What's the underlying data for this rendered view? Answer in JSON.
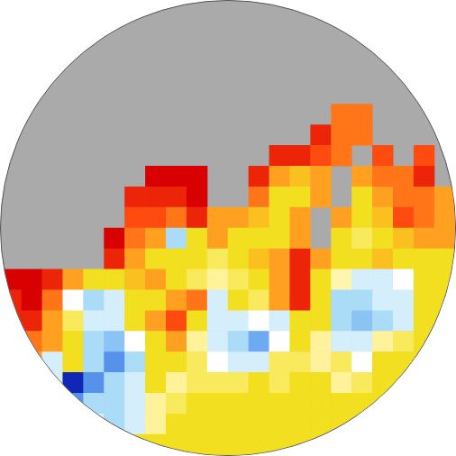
{
  "chart_data": {
    "type": "heatmap",
    "tick_labels": false,
    "color_range": [
      0,
      10
    ],
    "cells": [
      [
        null,
        null,
        null,
        null,
        null,
        null,
        null,
        null,
        null,
        null,
        null,
        null,
        null,
        null,
        null,
        null,
        null,
        null,
        null,
        null,
        null,
        null
      ],
      [
        null,
        null,
        null,
        null,
        null,
        null,
        null,
        null,
        null,
        null,
        null,
        null,
        null,
        null,
        null,
        null,
        null,
        null,
        null,
        null,
        null,
        null
      ],
      [
        null,
        null,
        null,
        null,
        null,
        null,
        null,
        null,
        null,
        null,
        null,
        null,
        null,
        null,
        null,
        null,
        null,
        null,
        null,
        null,
        null,
        null
      ],
      [
        null,
        null,
        null,
        null,
        null,
        null,
        null,
        null,
        null,
        null,
        null,
        null,
        null,
        null,
        null,
        null,
        null,
        null,
        null,
        null,
        null,
        null
      ],
      [
        null,
        null,
        null,
        null,
        null,
        null,
        null,
        null,
        null,
        null,
        null,
        null,
        null,
        null,
        null,
        null,
        null,
        null,
        null,
        null,
        null,
        null
      ],
      [
        null,
        null,
        null,
        null,
        null,
        null,
        null,
        null,
        null,
        null,
        null,
        null,
        null,
        null,
        null,
        null,
        8.5,
        8.5,
        null,
        null,
        null,
        null
      ],
      [
        null,
        null,
        null,
        null,
        null,
        null,
        null,
        null,
        null,
        null,
        null,
        null,
        null,
        null,
        null,
        9.5,
        8.5,
        8.5,
        null,
        null,
        null,
        null
      ],
      [
        null,
        null,
        null,
        null,
        null,
        null,
        null,
        null,
        null,
        null,
        null,
        null,
        null,
        9.5,
        9.5,
        9,
        8.5,
        null,
        9,
        null,
        9,
        null
      ],
      [
        null,
        null,
        null,
        null,
        null,
        null,
        null,
        10,
        10,
        10,
        null,
        null,
        9.5,
        8,
        7.5,
        8,
        null,
        8,
        8.5,
        8.5,
        9.5,
        null
      ],
      [
        null,
        null,
        null,
        null,
        null,
        null,
        9.5,
        9.5,
        9.5,
        10,
        null,
        null,
        8.5,
        7,
        7,
        8,
        null,
        7,
        8,
        8.5,
        8.5,
        8
      ],
      [
        null,
        null,
        null,
        null,
        null,
        null,
        9,
        9,
        8.5,
        9.5,
        8,
        8,
        7.5,
        7,
        8,
        null,
        8,
        7,
        7.5,
        9,
        8.5,
        8
      ],
      [
        null,
        null,
        null,
        null,
        null,
        10,
        8.5,
        8,
        4,
        7,
        8,
        7,
        7,
        7,
        8,
        null,
        7,
        6.5,
        7,
        7.5,
        8,
        8
      ],
      [
        null,
        null,
        null,
        null,
        null,
        9.5,
        8,
        7,
        7,
        7,
        6.5,
        7,
        7.5,
        8,
        9.5,
        8,
        7,
        7,
        7.5,
        7,
        7,
        7
      ],
      [
        10,
        10,
        9.5,
        8,
        7,
        7,
        7.5,
        8,
        7,
        6.5,
        6,
        6.5,
        7,
        8,
        9.5,
        7,
        5.8,
        4.5,
        4.5,
        5,
        7,
        7
      ],
      [
        9.5,
        10,
        8.5,
        5,
        4,
        4.5,
        7,
        7,
        8,
        8.5,
        4.5,
        7,
        6.5,
        8,
        9.5,
        7,
        4,
        4,
        4.5,
        4.5,
        7,
        7
      ],
      [
        9.5,
        9.5,
        8,
        6.5,
        4.5,
        4.5,
        7,
        8,
        9,
        7,
        4.5,
        4.5,
        5,
        4.5,
        7,
        7,
        4,
        3.5,
        4,
        4.5,
        7,
        7
      ],
      [
        9.5,
        8.5,
        8,
        7,
        4,
        3.5,
        5,
        7,
        8,
        6,
        4.5,
        4,
        3,
        5,
        7,
        6,
        4.5,
        4.5,
        6,
        6.5,
        7,
        7
      ],
      [
        8.5,
        8,
        4.5,
        7,
        4,
        2.5,
        4,
        7,
        7,
        6.5,
        5,
        4.5,
        4.5,
        6.5,
        6.5,
        6,
        6.5,
        5,
        7,
        7,
        7,
        7
      ],
      [
        4.5,
        4.5,
        4.5,
        0.5,
        2.5,
        4,
        4.5,
        7,
        6,
        6.5,
        6.5,
        6.5,
        7,
        6.5,
        7,
        7,
        6,
        6.5,
        7,
        7,
        7,
        7
      ],
      [
        4.5,
        4.5,
        4.5,
        2.5,
        4,
        4,
        4.5,
        6,
        6.5,
        7,
        7,
        7,
        7,
        7,
        7,
        7,
        7,
        7,
        7,
        7,
        7,
        7
      ],
      [
        7,
        7,
        7,
        7,
        4.5,
        4,
        4.5,
        6,
        7,
        7,
        7,
        7,
        7,
        7,
        7,
        7,
        7,
        7,
        7,
        7,
        7,
        7
      ],
      [
        7,
        7,
        7,
        7,
        7,
        7,
        7,
        7,
        7,
        7,
        7,
        7,
        7,
        7,
        7,
        7,
        7,
        7,
        7,
        7,
        7,
        7
      ]
    ]
  }
}
